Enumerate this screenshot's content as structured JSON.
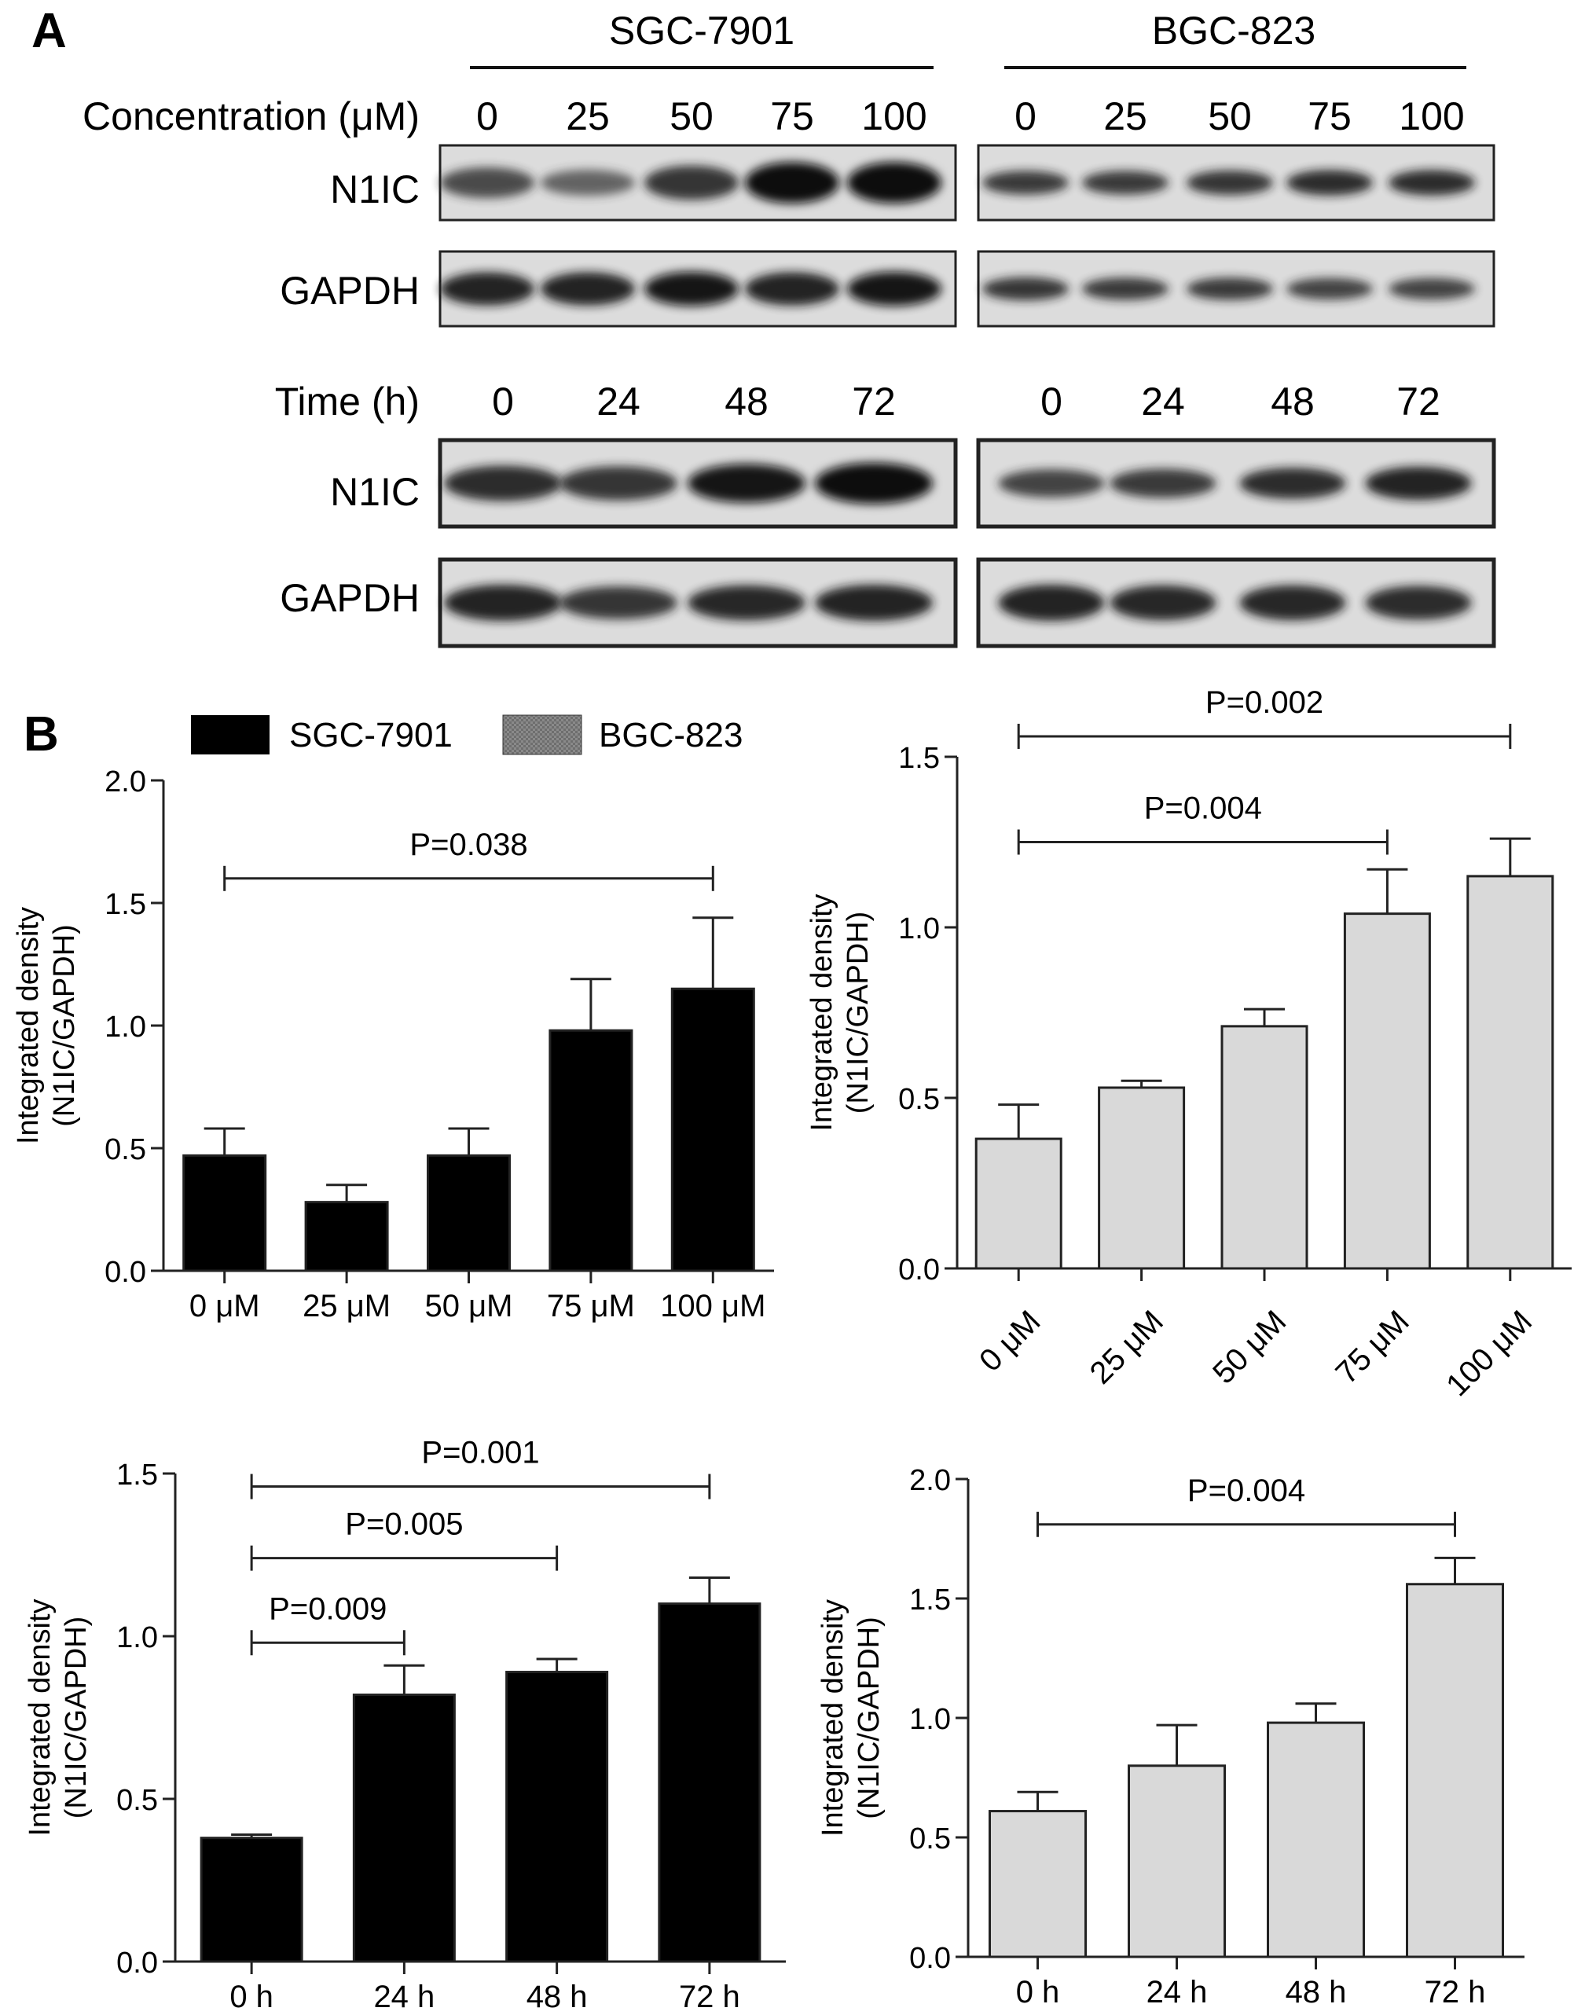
{
  "panel_a": {
    "label": "A",
    "cell_lines": [
      "SGC-7901",
      "BGC-823"
    ],
    "concentration_label": "Concentration (μM)",
    "time_label": "Time (h)",
    "proteins": [
      "N1IC",
      "GAPDH"
    ],
    "concentration_lanes": [
      [
        "0",
        "25",
        "50",
        "75",
        "100"
      ],
      [
        "0",
        "25",
        "50",
        "75",
        "100"
      ]
    ],
    "time_lanes": [
      [
        "0",
        "24",
        "48",
        "72"
      ],
      [
        "0",
        "24",
        "48",
        "72"
      ]
    ],
    "blots": {
      "conc_sgc_n1ic": [
        0.55,
        0.35,
        0.7,
        1.0,
        1.0
      ],
      "conc_sgc_gapdh": [
        0.85,
        0.85,
        0.9,
        0.85,
        0.9
      ],
      "conc_bgc_n1ic": [
        0.65,
        0.65,
        0.7,
        0.75,
        0.75
      ],
      "conc_bgc_gapdh": [
        0.7,
        0.65,
        0.65,
        0.6,
        0.6
      ],
      "time_sgc_n1ic": [
        0.75,
        0.7,
        0.9,
        1.0
      ],
      "time_sgc_gapdh": [
        0.85,
        0.7,
        0.8,
        0.85
      ],
      "time_bgc_n1ic": [
        0.6,
        0.65,
        0.75,
        0.85
      ],
      "time_bgc_gapdh": [
        0.85,
        0.8,
        0.8,
        0.75
      ]
    }
  },
  "panel_b": {
    "label": "B",
    "legend": [
      {
        "name": "SGC-7901",
        "color": "#000000"
      },
      {
        "name": "BGC-823",
        "color": "#808080"
      }
    ]
  },
  "colors": {
    "sgc": "#000000",
    "bgc_legend": "#808080",
    "bgc_bar": "#d9d9d9"
  },
  "chart_data": [
    {
      "type": "bar",
      "categories": [
        "0 μM",
        "25 μM",
        "50 μM",
        "75 μM",
        "100 μM"
      ],
      "values": [
        0.47,
        0.28,
        0.47,
        0.98,
        1.15
      ],
      "errors": [
        0.11,
        0.07,
        0.11,
        0.21,
        0.29
      ],
      "color": "#000000",
      "ylabel": "Integrated density\n(N1IC/GAPDH)",
      "ylim": [
        0,
        2.0
      ],
      "yticks": [
        "0.0",
        "0.5",
        "1.0",
        "1.5",
        "2.0"
      ],
      "rotated_labels": false,
      "comparisons": [
        {
          "from": 0,
          "to": 4,
          "label": "P=0.038",
          "level": 1.6
        }
      ]
    },
    {
      "type": "bar",
      "categories": [
        "0 μM",
        "25 μM",
        "50 μM",
        "75 μM",
        "100 μM"
      ],
      "values": [
        0.38,
        0.53,
        0.71,
        1.04,
        1.15
      ],
      "errors": [
        0.1,
        0.02,
        0.05,
        0.13,
        0.11
      ],
      "color": "#d9d9d9",
      "ylabel": "Integrated density\n(N1IC/GAPDH)",
      "ylim": [
        0,
        1.5
      ],
      "yticks": [
        "0.0",
        "0.5",
        "1.0",
        "1.5"
      ],
      "rotated_labels": true,
      "comparisons": [
        {
          "from": 0,
          "to": 4,
          "label": "P=0.002",
          "level": 1.56
        },
        {
          "from": 0,
          "to": 3,
          "label": "P=0.004",
          "level": 1.25
        }
      ]
    },
    {
      "type": "bar",
      "categories": [
        "0 h",
        "24 h",
        "48 h",
        "72 h"
      ],
      "values": [
        0.38,
        0.82,
        0.89,
        1.1
      ],
      "errors": [
        0.01,
        0.09,
        0.04,
        0.08
      ],
      "color": "#000000",
      "ylabel": "Integrated density\n(N1IC/GAPDH)",
      "ylim": [
        0,
        1.5
      ],
      "yticks": [
        "0.0",
        "0.5",
        "1.0",
        "1.5"
      ],
      "rotated_labels": false,
      "comparisons": [
        {
          "from": 0,
          "to": 3,
          "label": "P=0.001",
          "level": 1.46
        },
        {
          "from": 0,
          "to": 2,
          "label": "P=0.005",
          "level": 1.24
        },
        {
          "from": 0,
          "to": 1,
          "label": "P=0.009",
          "level": 0.98
        }
      ]
    },
    {
      "type": "bar",
      "categories": [
        "0 h",
        "24 h",
        "48 h",
        "72 h"
      ],
      "values": [
        0.61,
        0.8,
        0.98,
        1.56
      ],
      "errors": [
        0.08,
        0.17,
        0.08,
        0.11
      ],
      "color": "#d9d9d9",
      "ylabel": "Integrated density\n(N1IC/GAPDH)",
      "ylim": [
        0,
        2.0
      ],
      "yticks": [
        "0.0",
        "0.5",
        "1.0",
        "1.5",
        "2.0"
      ],
      "rotated_labels": false,
      "comparisons": [
        {
          "from": 0,
          "to": 3,
          "label": "P=0.004",
          "level": 1.81
        }
      ]
    }
  ]
}
